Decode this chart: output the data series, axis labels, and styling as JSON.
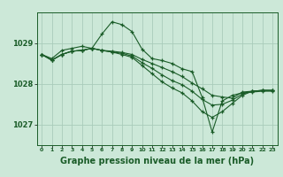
{
  "background_color": "#cce8d8",
  "grid_color": "#aaccbb",
  "line_color": "#1a5c28",
  "xlabel": "Graphe pression niveau de la mer (hPa)",
  "xlabel_fontsize": 7,
  "yticks": [
    1027,
    1028,
    1029
  ],
  "xtick_labels": [
    "0",
    "1",
    "2",
    "3",
    "4",
    "5",
    "6",
    "7",
    "8",
    "9",
    "10",
    "11",
    "12",
    "13",
    "14",
    "15",
    "16",
    "17",
    "18",
    "19",
    "20",
    "21",
    "22",
    "23"
  ],
  "xlim": [
    -0.5,
    23.5
  ],
  "ylim": [
    1026.5,
    1029.75
  ],
  "series": [
    [
      1028.72,
      1028.62,
      1028.82,
      1028.87,
      1028.92,
      1028.87,
      1029.22,
      1029.52,
      1029.45,
      1029.28,
      1028.85,
      1028.62,
      1028.57,
      1028.5,
      1028.37,
      1028.3,
      1027.67,
      1026.82,
      1027.58,
      1027.72,
      1027.78,
      1027.8,
      1027.82,
      1027.82
    ],
    [
      1028.72,
      1028.58,
      1028.72,
      1028.8,
      1028.82,
      1028.87,
      1028.82,
      1028.8,
      1028.77,
      1028.72,
      1028.6,
      1028.5,
      1028.4,
      1028.3,
      1028.18,
      1028.02,
      1027.88,
      1027.72,
      1027.68,
      1027.65,
      1027.8,
      1027.82,
      1027.84,
      1027.84
    ],
    [
      1028.72,
      1028.58,
      1028.72,
      1028.8,
      1028.82,
      1028.87,
      1028.82,
      1028.78,
      1028.75,
      1028.68,
      1028.52,
      1028.38,
      1028.22,
      1028.08,
      1027.98,
      1027.82,
      1027.62,
      1027.48,
      1027.5,
      1027.6,
      1027.75,
      1027.82,
      1027.84,
      1027.84
    ],
    [
      1028.72,
      1028.58,
      1028.72,
      1028.8,
      1028.82,
      1028.87,
      1028.82,
      1028.78,
      1028.72,
      1028.65,
      1028.45,
      1028.25,
      1028.05,
      1027.9,
      1027.78,
      1027.58,
      1027.32,
      1027.18,
      1027.32,
      1027.52,
      1027.72,
      1027.82,
      1027.84,
      1027.84
    ]
  ]
}
